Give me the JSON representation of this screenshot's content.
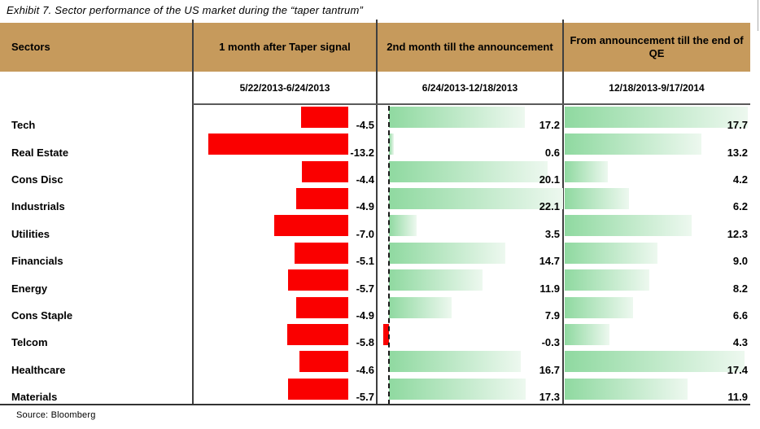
{
  "title": "Exhibit 7. Sector performance of the US market during the “taper tantrum”",
  "source": "Source: Bloomberg",
  "table": {
    "sectors_header": "Sectors",
    "columns": [
      {
        "header": "1 month after Taper signal",
        "period": "5/22/2013-6/24/2013"
      },
      {
        "header": "2nd month till the announcement",
        "period": "6/24/2013-12/18/2013"
      },
      {
        "header": "From announcement till the end of QE",
        "period": "12/18/2013-9/17/2014"
      }
    ]
  },
  "chart_data": {
    "type": "bar",
    "orientation": "horizontal",
    "title": "Exhibit 7. Sector performance of the US market during the “taper tantrum”",
    "categories": [
      "Tech",
      "Real Estate",
      "Cons Disc",
      "Industrials",
      "Utilities",
      "Financials",
      "Energy",
      "Cons Staple",
      "Telcom",
      "Healthcare",
      "Materials"
    ],
    "series": [
      {
        "name": "1 month after Taper signal (5/22/2013-6/24/2013)",
        "values": [
          -4.5,
          -13.2,
          -4.4,
          -4.9,
          -7.0,
          -5.1,
          -5.7,
          -4.9,
          -5.8,
          -4.6,
          -5.7
        ]
      },
      {
        "name": "2nd month till the announcement (6/24/2013-12/18/2013)",
        "values": [
          17.2,
          0.6,
          20.1,
          22.1,
          3.5,
          14.7,
          11.9,
          7.9,
          -0.3,
          16.7,
          17.3
        ]
      },
      {
        "name": "From announcement till the end of QE (12/18/2013-9/17/2014)",
        "values": [
          17.7,
          13.2,
          4.2,
          6.2,
          12.3,
          9.0,
          8.2,
          6.6,
          4.3,
          17.4,
          11.9
        ]
      }
    ],
    "value_labels": "one decimal, shown right of each panel",
    "axis": {
      "panel1_range": [
        -14.7,
        0
      ],
      "panel2_range": [
        -0.8,
        22.1
      ],
      "panel3_range": [
        0,
        18.0
      ],
      "gridlines": false,
      "zero_line_panel2": "dashed"
    },
    "colors": {
      "negative_bar": "#fa0000",
      "positive_bar_gradient_start": "#8fd9a0",
      "positive_bar_gradient_end": "#edf8ef",
      "header_band": "#c69a5c",
      "separator_line": "#3f3f3f"
    }
  }
}
